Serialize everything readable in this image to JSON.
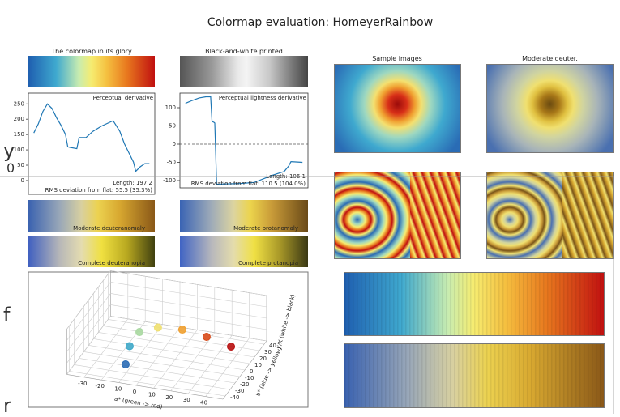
{
  "background_fragments": [
    "y",
    "0",
    "f",
    "r"
  ],
  "figure": {
    "title": "Colormap evaluation: HomeyerRainbow",
    "colormap_panels": [
      "The colormap in its glory",
      "Black-and-white printed"
    ],
    "cvd_panels": [
      "Moderate deuteranomaly",
      "Moderate protanomaly",
      "Complete deuteranopia",
      "Complete protanopia"
    ],
    "image_titles": [
      "Sample images",
      "Moderate deuter."
    ]
  },
  "chart_data": [
    {
      "type": "line",
      "title": "Perceptual derivative",
      "x": [
        0,
        10,
        20,
        30,
        40,
        50,
        60,
        70,
        75,
        80,
        95,
        100,
        115,
        130,
        150,
        175,
        190,
        200,
        210,
        220,
        225,
        235,
        245,
        255
      ],
      "values": [
        155,
        185,
        225,
        250,
        235,
        205,
        180,
        150,
        110,
        108,
        104,
        140,
        140,
        160,
        178,
        195,
        160,
        120,
        90,
        60,
        30,
        45,
        55,
        55
      ],
      "color": "#1f77b4",
      "xlim": [
        -12,
        267
      ],
      "ylim": [
        -45,
        285
      ],
      "yticks": [
        0,
        50,
        100,
        150,
        200,
        250
      ],
      "annotations": [
        "Length: 197.2",
        "RMS deviation from flat: 55.5 (35.3%)"
      ]
    },
    {
      "type": "line",
      "title": "Perceptual lightness derivative",
      "x": [
        0,
        15,
        30,
        45,
        55,
        58,
        62,
        64,
        68,
        120,
        150,
        190,
        215,
        225,
        230,
        255
      ],
      "values": [
        112,
        120,
        127,
        130,
        130,
        62,
        60,
        58,
        -110,
        -108,
        -105,
        -85,
        -75,
        -60,
        -48,
        -50
      ],
      "color": "#1f77b4",
      "xlim": [
        -12,
        267
      ],
      "ylim": [
        -120,
        140
      ],
      "yticks": [
        -100,
        -50,
        0,
        50,
        100
      ],
      "hline": 0,
      "annotations": [
        "Length: 106.1",
        "RMS deviation from flat: 110.5 (104.0%)"
      ]
    },
    {
      "type": "scatter3d",
      "xlabel": "a* (green -> red)",
      "ylabel": "b* (blue -> yellow)",
      "zlabel": "J'/K (white -> black)",
      "x": [
        -9.2,
        -10.9,
        -8.0,
        3.1,
        17.5,
        31.1,
        44.8
      ],
      "y": [
        -33.9,
        -19.6,
        -9.7,
        -11.2,
        -12.6,
        -11.0,
        -9.7
      ],
      "z": [
        20,
        35,
        50,
        65,
        70,
        62,
        50
      ],
      "colors": [
        "#2a6cb5",
        "#3fa9c9",
        "#a8d8a0",
        "#f0e070",
        "#f0a030",
        "#d84a18",
        "#b81010"
      ],
      "xlim": [
        -40,
        50
      ],
      "ylim": [
        -45,
        45
      ],
      "zlim": [
        0,
        80
      ],
      "xticks": [
        -30,
        -20,
        -10,
        0,
        10,
        20,
        30,
        40
      ],
      "yticks": [
        -40,
        -30,
        -20,
        -10,
        0,
        10,
        20,
        30,
        40
      ]
    }
  ]
}
